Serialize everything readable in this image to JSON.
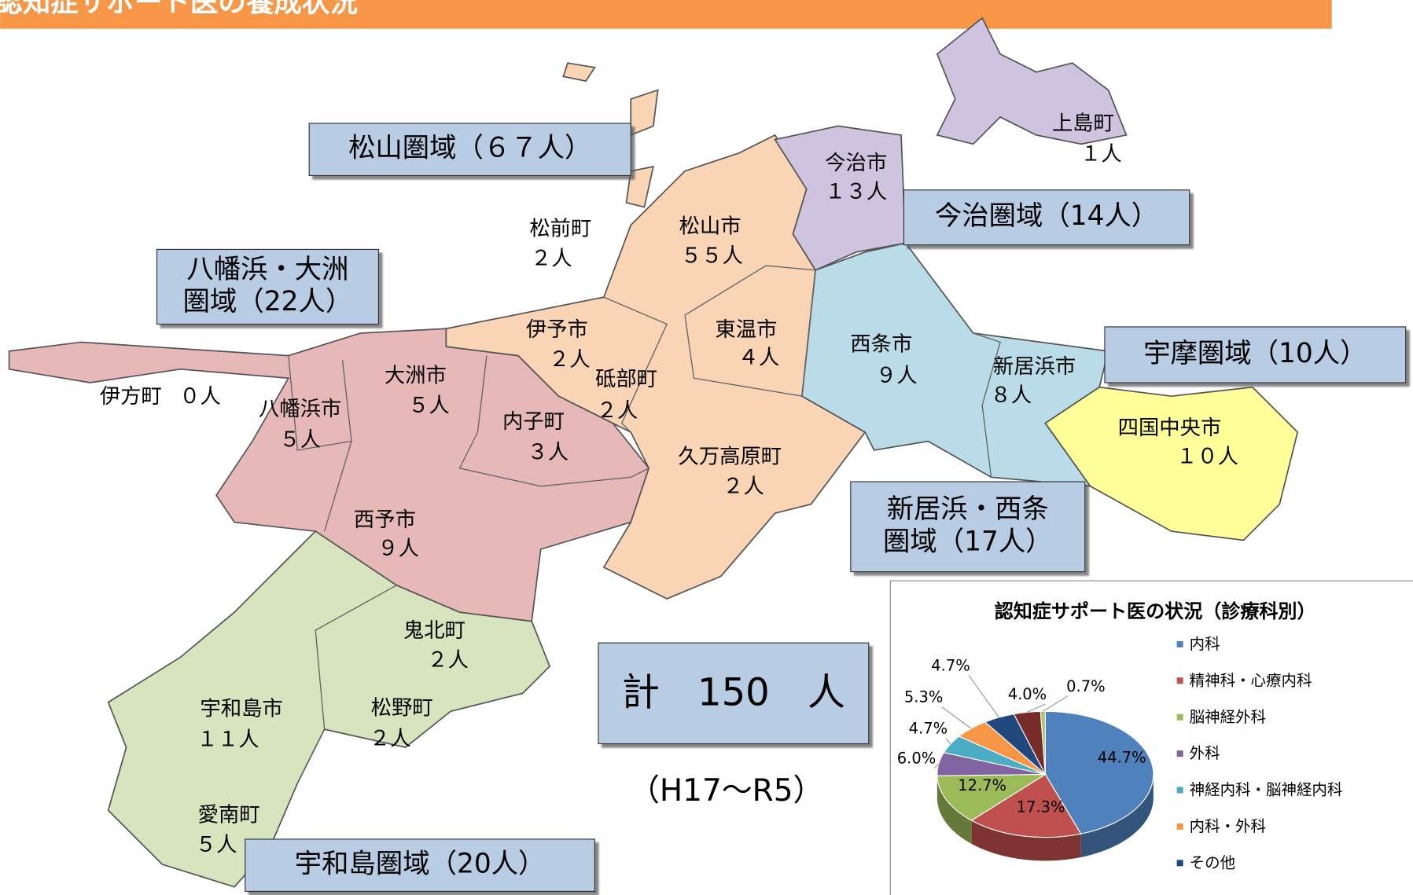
{
  "header": {
    "title": "認知症サポート医の養成状況"
  },
  "towns": [
    {
      "name": "今治市",
      "count": "１３人"
    },
    {
      "name": "上島町",
      "count": "１人"
    },
    {
      "name": "松前町",
      "count": "２人"
    },
    {
      "name": "松山市",
      "count": "５５人"
    },
    {
      "name": "伊予市",
      "count": "２人"
    },
    {
      "name": "東温市",
      "count": "４人"
    },
    {
      "name": "西条市",
      "count": "９人"
    },
    {
      "name": "新居浜市",
      "count": "８人"
    },
    {
      "name": "砥部町",
      "count": "２人"
    },
    {
      "name": "伊方町",
      "count": "０人"
    },
    {
      "name": "八幡浜市",
      "count": "５人"
    },
    {
      "name": "大洲市",
      "count": "５人"
    },
    {
      "name": "内子町",
      "count": "３人"
    },
    {
      "name": "久万高原町",
      "count": "２人"
    },
    {
      "name": "四国中央市",
      "count": "１０人"
    },
    {
      "name": "西予市",
      "count": "９人"
    },
    {
      "name": "鬼北町",
      "count": "２人"
    },
    {
      "name": "宇和島市",
      "count": "１１人"
    },
    {
      "name": "松野町",
      "count": "２人"
    },
    {
      "name": "愛南町",
      "count": "５人"
    }
  ],
  "areas": [
    {
      "lines": [
        "松山圏域（６７人）"
      ]
    },
    {
      "lines": [
        "今治圏域（14人）"
      ]
    },
    {
      "lines": [
        "八幡浜・大洲",
        "圏域（22人）"
      ]
    },
    {
      "lines": [
        "宇摩圏域（10人）"
      ]
    },
    {
      "lines": [
        "新居浜・西条",
        "圏域（17人）"
      ]
    },
    {
      "lines": [
        "宇和島圏域（20人）"
      ]
    }
  ],
  "total": "計　150　人",
  "period": "（H17～R5）",
  "chart_data": {
    "type": "pie",
    "title": "認知症サポート医の状況（診療科別）",
    "categories": [
      "内科",
      "精神科・心療内科",
      "脳神経外科",
      "外科",
      "神経内科・脳神経内科",
      "内科・外科",
      "その他",
      null,
      null
    ],
    "values": [
      44.7,
      17.3,
      12.7,
      6.0,
      4.7,
      5.3,
      4.7,
      4.0,
      0.7
    ],
    "value_labels": [
      "44.7%",
      "17.3%",
      "12.7%",
      "6.0%",
      "4.7%",
      "5.3%",
      "4.7%",
      "4.0%",
      "0.7%"
    ],
    "colors": [
      "#4f81bd",
      "#c0504d",
      "#9bbb59",
      "#8064a2",
      "#4bacc6",
      "#f79646",
      "#1f497d",
      "#772c2a",
      "#a9c46e"
    ]
  }
}
